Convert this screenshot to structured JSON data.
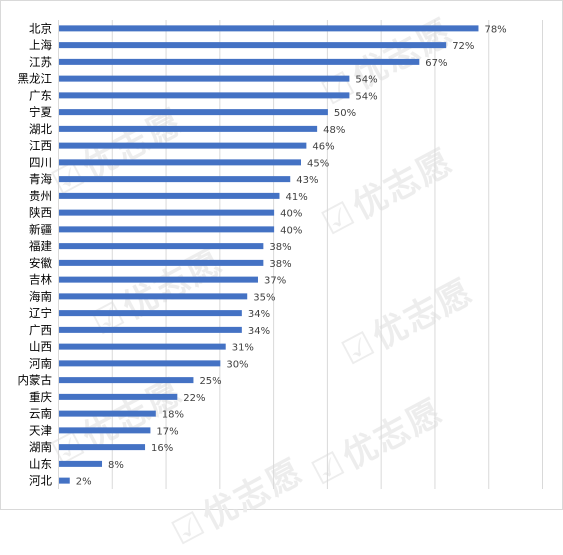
{
  "watermark": {
    "check_icon": "checkmark-logo-icon",
    "text": "优志愿"
  },
  "colors": {
    "bar": "#4472c4",
    "grid": "#d9d9d9",
    "label": "#404040",
    "watermark": "#ededed"
  },
  "chart_data": {
    "type": "bar",
    "orientation": "horizontal",
    "categories": [
      "北京",
      "上海",
      "江苏",
      "黑龙江",
      "广东",
      "宁夏",
      "湖北",
      "江西",
      "四川",
      "青海",
      "贵州",
      "陕西",
      "新疆",
      "福建",
      "安徽",
      "吉林",
      "海南",
      "辽宁",
      "广西",
      "山西",
      "河南",
      "内蒙古",
      "重庆",
      "云南",
      "天津",
      "湖南",
      "山东",
      "河北"
    ],
    "values": [
      78,
      72,
      67,
      54,
      54,
      50,
      48,
      46,
      45,
      43,
      41,
      40,
      40,
      38,
      38,
      37,
      35,
      34,
      34,
      31,
      30,
      25,
      22,
      18,
      17,
      16,
      8,
      2
    ],
    "value_labels": [
      "78%",
      "72%",
      "67%",
      "54%",
      "54%",
      "50%",
      "48%",
      "46%",
      "45%",
      "43%",
      "41%",
      "40%",
      "40%",
      "38%",
      "38%",
      "37%",
      "35%",
      "34%",
      "34%",
      "31%",
      "30%",
      "25%",
      "22%",
      "18%",
      "17%",
      "16%",
      "8%",
      "2%"
    ],
    "value_unit": "%",
    "title": "",
    "xlabel": "",
    "ylabel": "",
    "xlim": [
      0,
      90
    ],
    "x_grid_step": 10,
    "grid": true,
    "legend": "none"
  }
}
